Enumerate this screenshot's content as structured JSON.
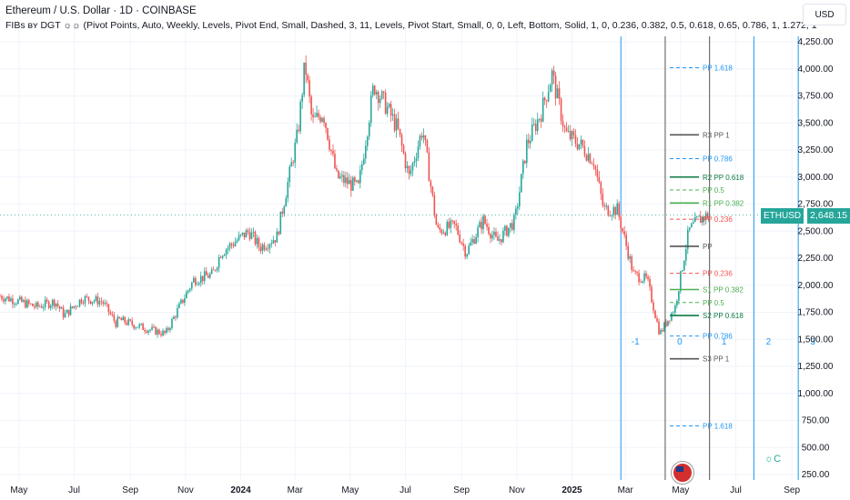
{
  "header": {
    "title": "Ethereum / U.S. Dollar · 1D · COINBASE",
    "indicator": "FIBs ʙʏ DGT ☼☼ (Pivot Points, Auto, Weekly, Levels, Pivot End, Small, Dashed, 3, 11, Levels, Pivot Start, Small, 0, 0, Left, Bottom, Solid, 1, 0, 0.236, 0.382, 0.5, 0.618, 0.65, 0.786, 1, 1.272, 1"
  },
  "currency_button": "USD",
  "last_price": {
    "symbol": "ETHUSD",
    "value": "2,648.15"
  },
  "colors": {
    "up": "#26a69a",
    "down": "#ef5350",
    "grid": "#f0f3fa",
    "axis_text": "#131722",
    "vline": "#2196f3"
  },
  "chart_data": {
    "type": "line",
    "title": "Ethereum / U.S. Dollar · 1D · COINBASE",
    "xlabel": "",
    "ylabel": "",
    "ylim": [
      250,
      4250
    ],
    "y_ticks": [
      "4,250.00",
      "4,000.00",
      "3,750.00",
      "3,500.00",
      "3,250.00",
      "3,000.00",
      "2,750.00",
      "2,500.00",
      "2,250.00",
      "2,000.00",
      "1,750.00",
      "1,500.00",
      "1,250.00",
      "1,000.00",
      "750.00",
      "500.00",
      "250.00"
    ],
    "y_tick_values": [
      4250,
      4000,
      3750,
      3500,
      3250,
      3000,
      2750,
      2500,
      2250,
      2000,
      1750,
      1500,
      1250,
      1000,
      750,
      500,
      250
    ],
    "x_ticks": [
      {
        "label": "May",
        "bold": false,
        "date": "2023-05-01"
      },
      {
        "label": "Jul",
        "bold": false,
        "date": "2023-07-01"
      },
      {
        "label": "Sep",
        "bold": false,
        "date": "2023-09-01"
      },
      {
        "label": "Nov",
        "bold": false,
        "date": "2023-11-01"
      },
      {
        "label": "2024",
        "bold": true,
        "date": "2024-01-01"
      },
      {
        "label": "Mar",
        "bold": false,
        "date": "2024-03-01"
      },
      {
        "label": "May",
        "bold": false,
        "date": "2024-05-01"
      },
      {
        "label": "Jul",
        "bold": false,
        "date": "2024-07-01"
      },
      {
        "label": "Sep",
        "bold": false,
        "date": "2024-09-01"
      },
      {
        "label": "Nov",
        "bold": false,
        "date": "2024-11-01"
      },
      {
        "label": "2025",
        "bold": true,
        "date": "2025-01-01"
      },
      {
        "label": "Mar",
        "bold": false,
        "date": "2025-03-01"
      },
      {
        "label": "May",
        "bold": false,
        "date": "2025-05-01"
      },
      {
        "label": "Jul",
        "bold": false,
        "date": "2025-07-01"
      },
      {
        "label": "Sep",
        "bold": false,
        "date": "2025-09-01"
      }
    ],
    "series": [
      {
        "x": [
          "2023-04-10",
          "2023-05-01",
          "2023-05-20",
          "2023-06-10",
          "2023-06-20",
          "2023-07-10",
          "2023-08-01",
          "2023-08-16",
          "2023-08-20",
          "2023-09-10",
          "2023-10-10",
          "2023-10-25",
          "2023-11-10",
          "2023-12-01",
          "2023-12-10",
          "2024-01-10",
          "2024-01-22",
          "2024-02-10",
          "2024-03-04",
          "2024-03-12",
          "2024-03-20",
          "2024-04-01",
          "2024-04-16",
          "2024-05-10",
          "2024-05-27",
          "2024-06-10",
          "2024-06-22",
          "2024-07-05",
          "2024-07-20",
          "2024-08-05",
          "2024-08-25",
          "2024-09-06",
          "2024-09-25",
          "2024-10-10",
          "2024-10-30",
          "2024-11-12",
          "2024-11-28",
          "2024-12-10",
          "2024-12-25",
          "2025-01-10",
          "2025-01-25",
          "2025-02-05",
          "2025-02-20",
          "2025-03-10",
          "2025-03-25",
          "2025-04-08",
          "2025-04-25",
          "2025-05-10",
          "2025-05-20",
          "2025-05-31"
        ],
        "values": [
          1900,
          1850,
          1800,
          1850,
          1720,
          1880,
          1850,
          1650,
          1680,
          1620,
          1550,
          1800,
          2050,
          2100,
          2300,
          2500,
          2350,
          2450,
          3400,
          4050,
          3500,
          3600,
          3000,
          2900,
          3850,
          3650,
          3450,
          3000,
          3450,
          2500,
          2550,
          2300,
          2600,
          2400,
          2600,
          3300,
          3600,
          3950,
          3400,
          3300,
          3150,
          2700,
          2700,
          2100,
          2050,
          1550,
          1800,
          2500,
          2600,
          2648
        ]
      }
    ],
    "levels": [
      {
        "label": "PP 1.618",
        "value": 4010,
        "color": "#2196f3",
        "style": "dashed"
      },
      {
        "label": "R3 PP 1",
        "value": 3390,
        "color": "#555555",
        "style": "solid"
      },
      {
        "label": "PP 0.786",
        "value": 3170,
        "color": "#2196f3",
        "style": "dashed"
      },
      {
        "label": "R2 PP 0.618",
        "value": 3000,
        "color": "#0c7a43",
        "style": "solid"
      },
      {
        "label": "PP 0.5",
        "value": 2880,
        "color": "#4caf50",
        "style": "dashed"
      },
      {
        "label": "R1 PP 0.382",
        "value": 2760,
        "color": "#4caf50",
        "style": "solid"
      },
      {
        "label": "PP 0.236",
        "value": 2610,
        "color": "#ef5350",
        "style": "dashed"
      },
      {
        "label": "PP",
        "value": 2360,
        "color": "#555555",
        "style": "solid"
      },
      {
        "label": "PP 0.236",
        "value": 2110,
        "color": "#ef5350",
        "style": "dashed"
      },
      {
        "label": "S1 PP 0.382",
        "value": 1960,
        "color": "#4caf50",
        "style": "solid"
      },
      {
        "label": "PP 0.5",
        "value": 1840,
        "color": "#4caf50",
        "style": "dashed"
      },
      {
        "label": "S2 PP 0.618",
        "value": 1720,
        "color": "#0c7a43",
        "style": "solid"
      },
      {
        "label": "PP 0.786",
        "value": 1530,
        "color": "#2196f3",
        "style": "dashed"
      },
      {
        "label": "S3 PP 1",
        "value": 1320,
        "color": "#555555",
        "style": "solid"
      },
      {
        "label": "PP 1.618",
        "value": 700,
        "color": "#2196f3",
        "style": "dashed"
      }
    ],
    "vertical_markers": [
      {
        "label": "-1",
        "date": "2025-02-24",
        "color": "#2196f3"
      },
      {
        "label": "0",
        "date": "2025-04-14",
        "color": "#555555"
      },
      {
        "label": "1",
        "date": "2025-06-02",
        "color": "#555555"
      },
      {
        "label": "2",
        "date": "2025-07-21",
        "color": "#2196f3"
      },
      {
        "label": "3",
        "date": "2025-09-08",
        "color": "#2196f3"
      }
    ],
    "grid": true,
    "legend": "none"
  }
}
